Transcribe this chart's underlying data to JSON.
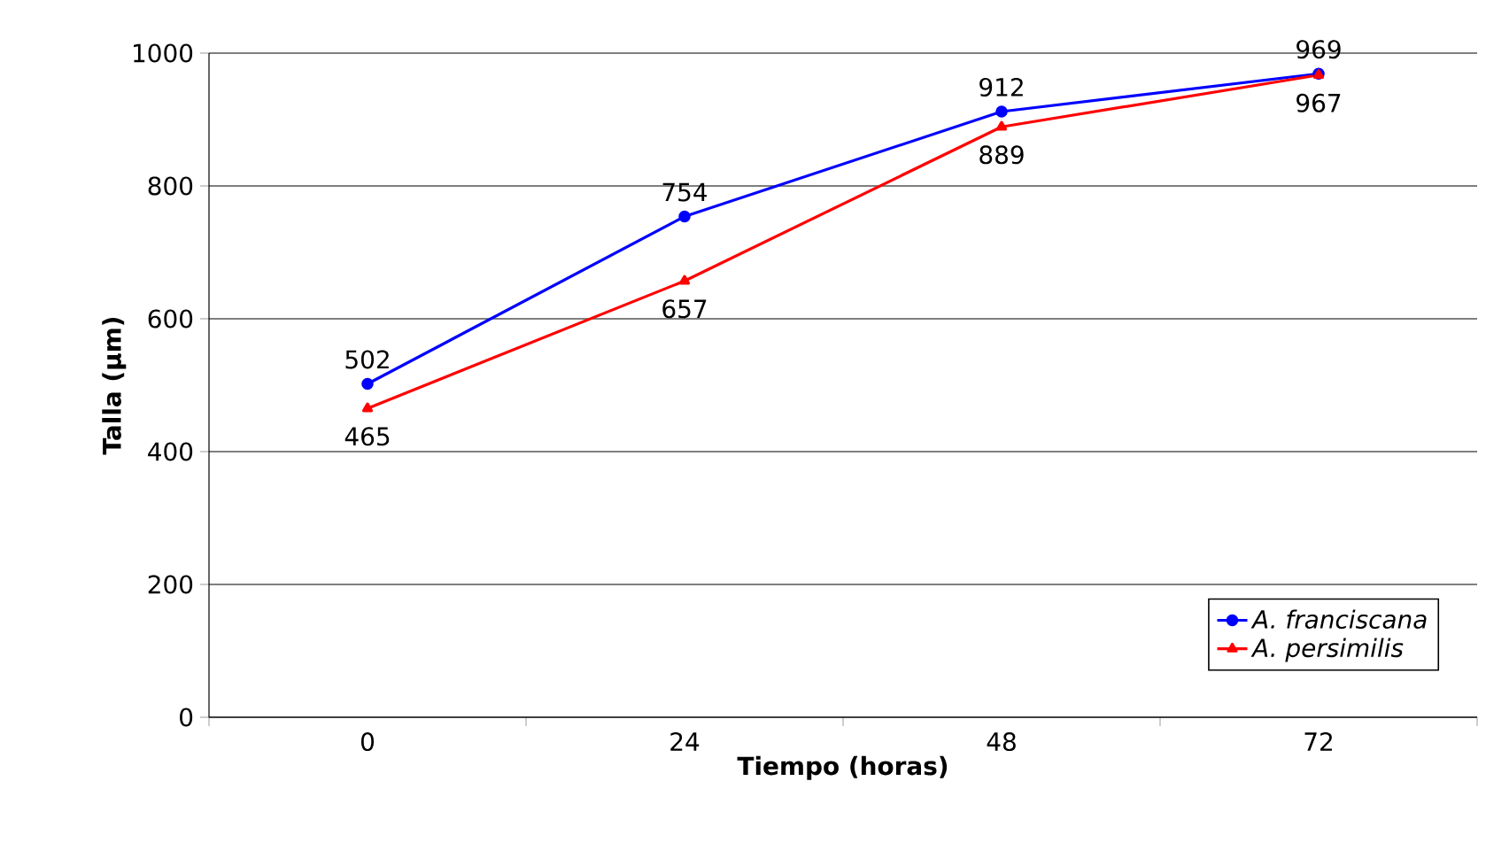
{
  "chart_data": {
    "type": "line",
    "xlabel": "Tiempo (horas)",
    "ylabel": "Talla (μm)",
    "categories": [
      "0",
      "24",
      "48",
      "72"
    ],
    "series": [
      {
        "name": "A. franciscana",
        "color": "#0000ff",
        "marker": "circle",
        "values": [
          502,
          754,
          912,
          969
        ]
      },
      {
        "name": "A. persimilis",
        "color": "#ff0000",
        "marker": "triangle",
        "values": [
          465,
          657,
          889,
          967
        ]
      }
    ],
    "ylim": [
      0,
      1000
    ],
    "yticks": [
      0,
      200,
      400,
      600,
      800,
      1000
    ],
    "grid": "y",
    "legend": "bottom right",
    "data_labels": true
  }
}
